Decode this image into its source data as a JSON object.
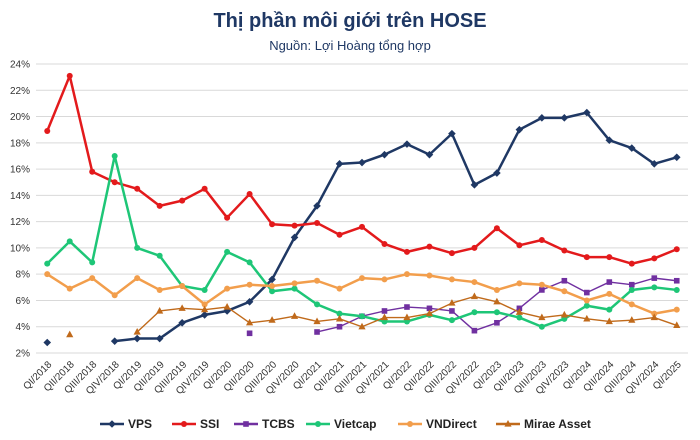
{
  "chart_data": {
    "type": "line",
    "title": "Thị phần môi giới trên HOSE",
    "subtitle": "Nguồn: Lợi Hoàng tổng hợp",
    "ylim": [
      2,
      24
    ],
    "yticks": [
      "2%",
      "4%",
      "6%",
      "8%",
      "10%",
      "12%",
      "14%",
      "16%",
      "18%",
      "20%",
      "22%",
      "24%"
    ],
    "ytick_values": [
      2,
      4,
      6,
      8,
      10,
      12,
      14,
      16,
      18,
      20,
      22,
      24
    ],
    "categories": [
      "QI/2018",
      "QII/2018",
      "QIII/2018",
      "QIV/2018",
      "QI/2019",
      "QII/2019",
      "QIII/2019",
      "QIV/2019",
      "QI/2020",
      "QII/2020",
      "QIII/2020",
      "QIV/2020",
      "QI/2021",
      "QII/2021",
      "QIII/2021",
      "QIV/2021",
      "QI/2022",
      "QII/2022",
      "QIII/2022",
      "QIV/2022",
      "QI/2023",
      "QII/2023",
      "QIII/2023",
      "QIV/2023",
      "QI/2024",
      "QII/2024",
      "QIII/2024",
      "QIV/2024",
      "QI/2025"
    ],
    "series": [
      {
        "name": "VPS",
        "color": "#1f3864",
        "values": [
          2.8,
          null,
          null,
          2.9,
          3.1,
          3.1,
          4.3,
          4.9,
          5.2,
          5.9,
          7.6,
          10.8,
          13.2,
          16.4,
          16.5,
          17.1,
          17.9,
          17.1,
          18.7,
          14.8,
          15.7,
          19.0,
          19.9,
          19.9,
          20.3,
          18.2,
          17.6,
          16.4,
          16.9
        ]
      },
      {
        "name": "SSI",
        "color": "#e31a1c",
        "values": [
          18.9,
          23.1,
          15.8,
          15.0,
          14.5,
          13.2,
          13.6,
          14.5,
          12.3,
          14.1,
          11.8,
          11.7,
          11.9,
          11.0,
          11.6,
          10.3,
          9.7,
          10.1,
          9.6,
          10.0,
          11.5,
          10.2,
          10.6,
          9.8,
          9.3,
          9.3,
          8.8,
          9.2,
          9.9
        ]
      },
      {
        "name": "TCBS",
        "color": "#7030a0",
        "values": [
          null,
          null,
          null,
          null,
          null,
          null,
          null,
          null,
          null,
          3.5,
          null,
          null,
          3.6,
          4.0,
          4.8,
          5.2,
          5.5,
          5.4,
          5.2,
          3.7,
          4.3,
          5.4,
          6.8,
          7.5,
          6.6,
          7.4,
          7.2,
          7.7,
          7.5
        ]
      },
      {
        "name": "Vietcap",
        "color": "#1ec677",
        "values": [
          8.8,
          10.5,
          8.9,
          17.0,
          10.0,
          9.4,
          7.1,
          6.8,
          9.7,
          8.9,
          6.7,
          6.9,
          5.7,
          5.0,
          4.8,
          4.4,
          4.4,
          4.9,
          4.5,
          5.1,
          5.1,
          4.7,
          4.0,
          4.6,
          5.6,
          5.3,
          6.8,
          7.0,
          6.8
        ]
      },
      {
        "name": "VNDirect",
        "color": "#f29e4c",
        "values": [
          8.0,
          6.9,
          7.7,
          6.4,
          7.7,
          6.8,
          7.1,
          5.7,
          6.9,
          7.2,
          7.1,
          7.3,
          7.5,
          6.9,
          7.7,
          7.6,
          8.0,
          7.9,
          7.6,
          7.4,
          6.8,
          7.3,
          7.2,
          6.7,
          6.0,
          6.5,
          5.7,
          5.0,
          5.3
        ]
      },
      {
        "name": "Mirae Asset",
        "color": "#c06a1b",
        "values": [
          null,
          3.4,
          null,
          null,
          3.6,
          5.2,
          5.4,
          5.3,
          5.5,
          4.3,
          4.5,
          4.8,
          4.4,
          4.6,
          4.0,
          4.7,
          4.7,
          5.0,
          5.8,
          6.3,
          5.9,
          5.1,
          4.7,
          4.9,
          4.6,
          4.4,
          4.5,
          4.7,
          4.1
        ]
      }
    ],
    "legend": "bottom"
  }
}
